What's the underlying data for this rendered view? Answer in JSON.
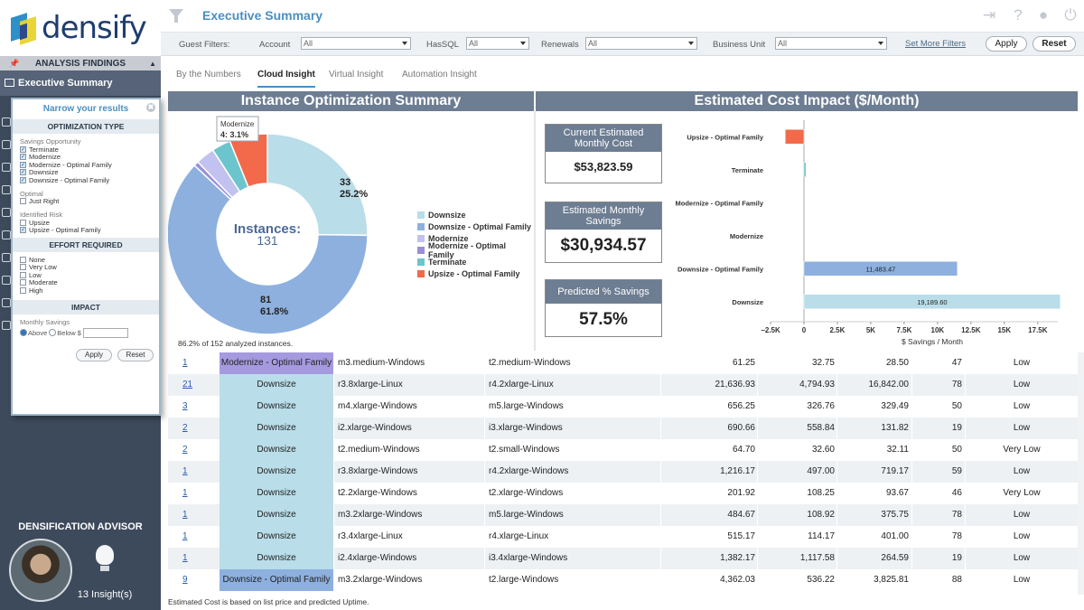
{
  "brand": {
    "name": "densify"
  },
  "sidebar": {
    "section_title": "ANALYSIS FINDINGS",
    "active_item": "Executive Summary",
    "advisor_title": "DENSIFICATION ADVISOR",
    "insights": "13 Insight(s)"
  },
  "narrow_panel": {
    "title": "Narrow your results",
    "optimization_header": "OPTIMIZATION TYPE",
    "savings_group": "Savings Opportunity",
    "savings_opts": [
      {
        "label": "Terminate",
        "checked": true
      },
      {
        "label": "Modernize",
        "checked": true
      },
      {
        "label": "Modernize - Optimal Family",
        "checked": true
      },
      {
        "label": "Downsize",
        "checked": true
      },
      {
        "label": "Downsize - Optimal Family",
        "checked": true
      }
    ],
    "optimal_group": "Optimal",
    "optimal_opts": [
      {
        "label": "Just Right",
        "checked": false
      }
    ],
    "risk_group": "Identified Risk",
    "risk_opts": [
      {
        "label": "Upsize",
        "checked": false
      },
      {
        "label": "Upsize - Optimal Family",
        "checked": true
      }
    ],
    "effort_header": "EFFORT REQUIRED",
    "effort_opts": [
      {
        "label": "None",
        "checked": false
      },
      {
        "label": "Very Low",
        "checked": false
      },
      {
        "label": "Low",
        "checked": false
      },
      {
        "label": "Moderate",
        "checked": false
      },
      {
        "label": "High",
        "checked": false
      }
    ],
    "impact_header": "IMPACT",
    "monthly_savings": "Monthly Savings",
    "above": "Above",
    "below": "Below $",
    "apply": "Apply",
    "reset": "Reset"
  },
  "header": {
    "title": "Executive Summary"
  },
  "filters": {
    "label": "Guest Filters:",
    "account_label": "Account",
    "account_value": "All",
    "hassql_label": "HasSQL",
    "hassql_value": "All",
    "renewals_label": "Renewals",
    "renewals_value": "All",
    "bu_label": "Business Unit",
    "bu_value": "All",
    "more": "Set More Filters",
    "apply": "Apply",
    "reset": "Reset"
  },
  "tabs": [
    "By the Numbers",
    "Cloud Insight",
    "Virtual Insight",
    "Automation Insight"
  ],
  "active_tab": "Cloud Insight",
  "left_panel": {
    "title": "Instance Optimization Summary",
    "center_label": "Instances:",
    "center_value": "131",
    "note": "86.2% of 152 analyzed instances.",
    "tooltip_line1": "Modernize",
    "tooltip_line2": "4: 3.1%",
    "label_top_count": "33",
    "label_top_pct": "25.2%",
    "label_bottom_count": "81",
    "label_bottom_pct": "61.8%"
  },
  "right_panel": {
    "title": "Estimated Cost Impact ($/Month)",
    "current_title": "Current Estimated Monthly Cost",
    "current_value": "$53,823.59",
    "savings_title": "Estimated Monthly Savings",
    "savings_value": "$30,934.57",
    "pct_title": "Predicted % Savings",
    "pct_value": "57.5%"
  },
  "chart_data": [
    {
      "type": "pie",
      "categories": [
        "Downsize",
        "Downsize - Optimal Family",
        "Modernize",
        "Modernize - Optimal Family",
        "Terminate",
        "Upsize - Optimal Family"
      ],
      "values": [
        33,
        81,
        4,
        1,
        4,
        8
      ],
      "colors": [
        "#b9dde9",
        "#8db0df",
        "#c2c2f0",
        "#9a8fd9",
        "#6cc5cc",
        "#f26a4a"
      ],
      "legend": "right"
    },
    {
      "type": "bar",
      "orientation": "horizontal",
      "categories": [
        "Upsize - Optimal Family",
        "Terminate",
        "Modernize - Optimal Family",
        "Modernize",
        "Downsize - Optimal Family",
        "Downsize"
      ],
      "values": [
        -1400,
        150,
        0,
        0,
        11483.47,
        19189.6
      ],
      "data_labels": [
        "",
        "",
        "",
        "",
        "11,483.47",
        "19,189.60"
      ],
      "colors": [
        "#f26a4a",
        "#6cc5cc",
        "#9a8fd9",
        "#c2c2f0",
        "#8db0df",
        "#b9dde9"
      ],
      "xlabel": "$ Savings / Month",
      "xlim": [
        -2500,
        19000
      ],
      "ticks": [
        -2500,
        0,
        2500,
        5000,
        7500,
        10000,
        12500,
        15000,
        17500
      ],
      "tick_labels": [
        "−2.5K",
        "0",
        "2.5K",
        "5K",
        "7.5K",
        "10K",
        "12.5K",
        "15K",
        "17.5K"
      ]
    }
  ],
  "table_rows": [
    {
      "count": "1",
      "type": "Modernize - Optimal Family",
      "from": "m3.medium-Windows",
      "to": "t2.medium-Windows",
      "n1": "61.25",
      "n2": "32.75",
      "n3": "28.50",
      "n4": "47",
      "effort": "Low",
      "color": "#a59adf"
    },
    {
      "count": "21",
      "type": "Downsize",
      "from": "r3.8xlarge-Linux",
      "to": "r4.2xlarge-Linux",
      "n1": "21,636.93",
      "n2": "4,794.93",
      "n3": "16,842.00",
      "n4": "78",
      "effort": "Low",
      "color": "#b9dde9"
    },
    {
      "count": "3",
      "type": "Downsize",
      "from": "m4.xlarge-Windows",
      "to": "m5.large-Windows",
      "n1": "656.25",
      "n2": "326.76",
      "n3": "329.49",
      "n4": "50",
      "effort": "Low",
      "color": "#b9dde9"
    },
    {
      "count": "2",
      "type": "Downsize",
      "from": "i2.xlarge-Windows",
      "to": "i3.xlarge-Windows",
      "n1": "690.66",
      "n2": "558.84",
      "n3": "131.82",
      "n4": "19",
      "effort": "Low",
      "color": "#b9dde9"
    },
    {
      "count": "2",
      "type": "Downsize",
      "from": "t2.medium-Windows",
      "to": "t2.small-Windows",
      "n1": "64.70",
      "n2": "32.60",
      "n3": "32.11",
      "n4": "50",
      "effort": "Very Low",
      "color": "#b9dde9"
    },
    {
      "count": "1",
      "type": "Downsize",
      "from": "r3.8xlarge-Windows",
      "to": "r4.2xlarge-Windows",
      "n1": "1,216.17",
      "n2": "497.00",
      "n3": "719.17",
      "n4": "59",
      "effort": "Low",
      "color": "#b9dde9"
    },
    {
      "count": "1",
      "type": "Downsize",
      "from": "t2.2xlarge-Windows",
      "to": "t2.xlarge-Windows",
      "n1": "201.92",
      "n2": "108.25",
      "n3": "93.67",
      "n4": "46",
      "effort": "Very Low",
      "color": "#b9dde9"
    },
    {
      "count": "1",
      "type": "Downsize",
      "from": "m3.2xlarge-Windows",
      "to": "m5.large-Windows",
      "n1": "484.67",
      "n2": "108.92",
      "n3": "375.75",
      "n4": "78",
      "effort": "Low",
      "color": "#b9dde9"
    },
    {
      "count": "1",
      "type": "Downsize",
      "from": "r3.4xlarge-Linux",
      "to": "r4.xlarge-Linux",
      "n1": "515.17",
      "n2": "114.17",
      "n3": "401.00",
      "n4": "78",
      "effort": "Low",
      "color": "#b9dde9"
    },
    {
      "count": "1",
      "type": "Downsize",
      "from": "i2.4xlarge-Windows",
      "to": "i3.4xlarge-Windows",
      "n1": "1,382.17",
      "n2": "1,117.58",
      "n3": "264.59",
      "n4": "19",
      "effort": "Low",
      "color": "#b9dde9"
    },
    {
      "count": "9",
      "type": "Downsize - Optimal Family",
      "from": "m3.2xlarge-Windows",
      "to": "t2.large-Windows",
      "n1": "4,362.03",
      "n2": "536.22",
      "n3": "3,825.81",
      "n4": "88",
      "effort": "Low",
      "color": "#8db0df"
    }
  ],
  "footnote": "Estimated Cost is based on list price and predicted Uptime."
}
